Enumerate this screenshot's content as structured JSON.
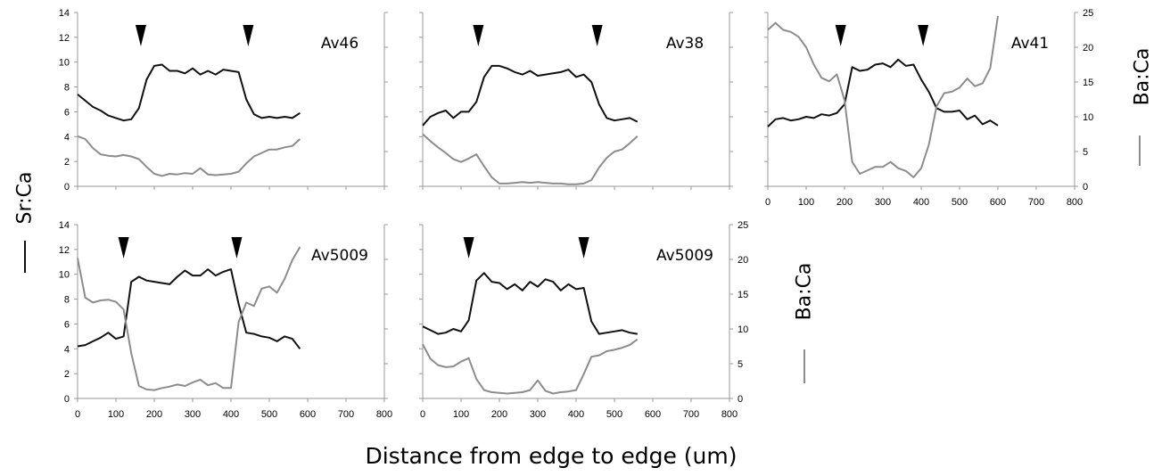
{
  "figure": {
    "xlabel": "Distance from edge to edge (um)",
    "left_ylabel": "Sr:Ca",
    "right_ylabel": "Ba:Ca",
    "colors": {
      "sr_series": "#111111",
      "ba_series": "#8c8c8c",
      "axis": "#999999"
    }
  },
  "chart_data": [
    {
      "id": "av46",
      "type": "line",
      "title": "Av46",
      "xlim": [
        0,
        800
      ],
      "ylim_left": [
        0,
        14
      ],
      "ylim_right": [
        0,
        25
      ],
      "show_xticks": false,
      "show_left_ticks": true,
      "show_right_ticks": false,
      "markers_x": [
        165,
        445
      ],
      "series": [
        {
          "axis": "left",
          "color": "#111111",
          "x": [
            0,
            20,
            40,
            60,
            80,
            100,
            120,
            140,
            160,
            180,
            200,
            220,
            240,
            260,
            280,
            300,
            320,
            340,
            360,
            380,
            400,
            420,
            440,
            460,
            480,
            500,
            520,
            540,
            560,
            580
          ],
          "y": [
            7.4,
            6.9,
            6.4,
            6.1,
            5.7,
            5.5,
            5.3,
            5.4,
            6.3,
            8.6,
            9.7,
            9.8,
            9.3,
            9.3,
            9.1,
            9.5,
            9.0,
            9.3,
            9.0,
            9.4,
            9.3,
            9.2,
            7.0,
            5.8,
            5.5,
            5.6,
            5.5,
            5.6,
            5.5,
            5.9
          ]
        },
        {
          "axis": "right",
          "color": "#8c8c8c",
          "x": [
            0,
            20,
            40,
            60,
            80,
            100,
            120,
            140,
            160,
            180,
            200,
            220,
            240,
            260,
            280,
            300,
            320,
            340,
            360,
            380,
            400,
            420,
            440,
            460,
            480,
            500,
            520,
            540,
            560,
            580
          ],
          "y": [
            7.2,
            6.8,
            5.5,
            4.6,
            4.4,
            4.3,
            4.5,
            4.3,
            3.9,
            2.8,
            1.8,
            1.5,
            1.8,
            1.7,
            1.9,
            1.8,
            2.6,
            1.7,
            1.6,
            1.7,
            1.8,
            2.1,
            3.3,
            4.3,
            4.8,
            5.3,
            5.3,
            5.6,
            5.8,
            6.8
          ]
        }
      ]
    },
    {
      "id": "av38",
      "type": "line",
      "title": "Av38",
      "xlim": [
        0,
        800
      ],
      "ylim_left": [
        0,
        14
      ],
      "ylim_right": [
        0,
        25
      ],
      "show_xticks": false,
      "show_left_ticks": false,
      "show_right_ticks": false,
      "markers_x": [
        145,
        455
      ],
      "series": [
        {
          "axis": "left",
          "color": "#111111",
          "x": [
            0,
            20,
            40,
            60,
            80,
            100,
            120,
            140,
            160,
            180,
            200,
            220,
            240,
            260,
            280,
            300,
            320,
            340,
            360,
            380,
            400,
            420,
            440,
            460,
            480,
            500,
            520,
            540,
            560
          ],
          "y": [
            4.9,
            5.6,
            5.9,
            6.1,
            5.5,
            6.0,
            6.0,
            6.8,
            8.8,
            9.7,
            9.7,
            9.5,
            9.2,
            9.0,
            9.3,
            8.9,
            9.0,
            9.1,
            9.2,
            9.4,
            8.8,
            9.0,
            8.4,
            6.6,
            5.5,
            5.3,
            5.4,
            5.5,
            5.2
          ]
        },
        {
          "axis": "right",
          "color": "#8c8c8c",
          "x": [
            0,
            20,
            40,
            60,
            80,
            100,
            120,
            140,
            160,
            180,
            200,
            220,
            240,
            260,
            280,
            300,
            320,
            340,
            360,
            380,
            400,
            420,
            440,
            460,
            480,
            500,
            520,
            540,
            560
          ],
          "y": [
            7.5,
            6.5,
            5.6,
            4.8,
            3.9,
            3.5,
            4.0,
            4.6,
            2.9,
            1.3,
            0.4,
            0.4,
            0.5,
            0.6,
            0.5,
            0.6,
            0.5,
            0.4,
            0.4,
            0.3,
            0.3,
            0.4,
            0.9,
            2.7,
            4.1,
            5.0,
            5.3,
            6.2,
            7.2
          ]
        }
      ]
    },
    {
      "id": "av41",
      "type": "line",
      "title": "Av41",
      "xlim": [
        0,
        800
      ],
      "ylim_left": [
        0,
        14
      ],
      "ylim_right": [
        0,
        25
      ],
      "show_xticks": true,
      "show_left_ticks": false,
      "show_right_ticks": true,
      "markers_x": [
        190,
        405
      ],
      "series": [
        {
          "axis": "left",
          "color": "#111111",
          "x": [
            0,
            20,
            40,
            60,
            80,
            100,
            120,
            140,
            160,
            180,
            200,
            220,
            240,
            260,
            280,
            300,
            320,
            340,
            360,
            380,
            400,
            420,
            440,
            460,
            480,
            500,
            520,
            540,
            560,
            580,
            600
          ],
          "y": [
            4.8,
            5.4,
            5.5,
            5.3,
            5.4,
            5.6,
            5.5,
            5.8,
            5.7,
            5.9,
            6.6,
            9.6,
            9.3,
            9.4,
            9.8,
            9.9,
            9.6,
            10.2,
            9.7,
            9.8,
            8.6,
            7.6,
            6.3,
            6.0,
            6.0,
            6.1,
            5.4,
            5.7,
            5.0,
            5.3,
            4.9
          ]
        },
        {
          "axis": "right",
          "color": "#8c8c8c",
          "x": [
            0,
            20,
            40,
            60,
            80,
            100,
            120,
            140,
            160,
            180,
            200,
            220,
            240,
            260,
            280,
            300,
            320,
            340,
            360,
            380,
            400,
            420,
            440,
            460,
            480,
            500,
            520,
            540,
            560,
            580,
            600
          ],
          "y": [
            22.5,
            23.5,
            22.5,
            22.2,
            21.5,
            20.0,
            17.5,
            15.6,
            15.1,
            16.1,
            12.4,
            3.5,
            1.8,
            2.3,
            2.8,
            2.8,
            3.5,
            2.6,
            2.2,
            1.3,
            2.6,
            6.0,
            11.5,
            13.4,
            13.6,
            14.2,
            15.5,
            14.4,
            14.8,
            17.0,
            24.5
          ]
        }
      ]
    },
    {
      "id": "av5009a",
      "type": "line",
      "title": "Av5009",
      "xlim": [
        0,
        800
      ],
      "ylim_left": [
        0,
        14
      ],
      "ylim_right": [
        0,
        25
      ],
      "show_xticks": true,
      "show_left_ticks": true,
      "show_right_ticks": false,
      "markers_x": [
        120,
        415
      ],
      "series": [
        {
          "axis": "left",
          "color": "#111111",
          "x": [
            0,
            20,
            40,
            60,
            80,
            100,
            120,
            140,
            160,
            180,
            200,
            220,
            240,
            260,
            280,
            300,
            320,
            340,
            360,
            380,
            400,
            420,
            440,
            460,
            480,
            500,
            520,
            540,
            560,
            580
          ],
          "y": [
            4.2,
            4.3,
            4.6,
            4.9,
            5.3,
            4.8,
            5.0,
            9.4,
            9.8,
            9.5,
            9.4,
            9.3,
            9.2,
            9.8,
            10.3,
            9.9,
            9.9,
            10.4,
            9.9,
            10.2,
            10.4,
            7.6,
            5.3,
            5.2,
            5.0,
            4.9,
            4.6,
            5.0,
            4.8,
            4.0
          ]
        },
        {
          "axis": "right",
          "color": "#8c8c8c",
          "x": [
            0,
            20,
            40,
            60,
            80,
            100,
            120,
            140,
            160,
            180,
            200,
            220,
            240,
            260,
            280,
            300,
            320,
            340,
            360,
            380,
            400,
            420,
            440,
            460,
            480,
            500,
            520,
            540,
            560,
            580
          ],
          "y": [
            20.2,
            14.5,
            13.8,
            14.1,
            14.2,
            13.9,
            12.8,
            6.5,
            1.8,
            1.3,
            1.2,
            1.5,
            1.7,
            2.0,
            1.8,
            2.3,
            2.7,
            1.9,
            2.2,
            1.5,
            1.5,
            11.0,
            13.8,
            13.3,
            15.8,
            16.1,
            15.2,
            17.2,
            19.9,
            21.8
          ]
        }
      ]
    },
    {
      "id": "av5009b",
      "type": "line",
      "title": "Av5009",
      "xlim": [
        0,
        800
      ],
      "ylim_left": [
        0,
        14
      ],
      "ylim_right": [
        0,
        25
      ],
      "show_xticks": true,
      "show_left_ticks": false,
      "show_right_ticks": true,
      "markers_x": [
        120,
        420
      ],
      "series": [
        {
          "axis": "left",
          "color": "#111111",
          "x": [
            0,
            20,
            40,
            60,
            80,
            100,
            120,
            140,
            160,
            180,
            200,
            220,
            240,
            260,
            280,
            300,
            320,
            340,
            360,
            380,
            400,
            420,
            440,
            460,
            480,
            500,
            520,
            540,
            560
          ],
          "y": [
            5.8,
            5.5,
            5.2,
            5.3,
            5.6,
            5.4,
            6.3,
            9.5,
            10.1,
            9.4,
            9.3,
            8.8,
            9.2,
            8.7,
            9.4,
            9.0,
            9.6,
            9.4,
            8.7,
            9.2,
            8.8,
            8.9,
            6.2,
            5.2,
            5.3,
            5.4,
            5.5,
            5.3,
            5.2
          ]
        },
        {
          "axis": "right",
          "color": "#8c8c8c",
          "x": [
            0,
            20,
            40,
            60,
            80,
            100,
            120,
            140,
            160,
            180,
            200,
            220,
            240,
            260,
            280,
            300,
            320,
            340,
            360,
            380,
            400,
            420,
            440,
            460,
            480,
            500,
            520,
            540,
            560
          ],
          "y": [
            7.8,
            5.7,
            4.8,
            4.5,
            4.6,
            5.3,
            5.8,
            2.8,
            1.2,
            0.9,
            0.8,
            0.7,
            0.8,
            0.9,
            1.2,
            2.6,
            1.1,
            0.7,
            0.9,
            1.0,
            1.2,
            3.5,
            6.0,
            6.2,
            6.8,
            7.0,
            7.3,
            7.7,
            8.5
          ]
        }
      ]
    }
  ]
}
